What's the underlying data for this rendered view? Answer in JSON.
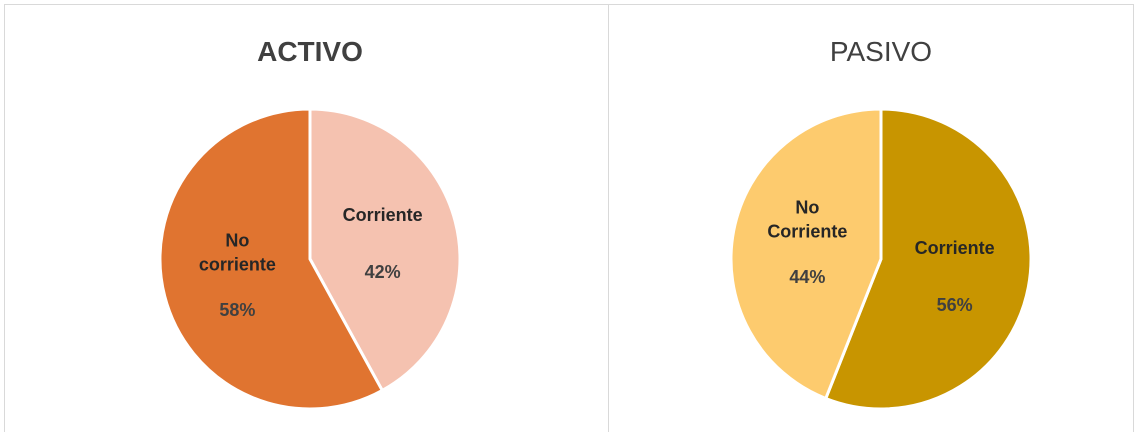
{
  "chart_data": [
    {
      "type": "pie",
      "title": "ACTIVO",
      "title_bold": true,
      "categories": [
        "Corriente",
        "No corriente"
      ],
      "values": [
        42,
        58
      ],
      "value_labels": [
        "42%",
        "58%"
      ],
      "colors": [
        "#F5C2B0",
        "#E07430"
      ]
    },
    {
      "type": "pie",
      "title": "PASIVO",
      "title_bold": false,
      "categories": [
        "Corriente",
        "No Corriente"
      ],
      "values": [
        56,
        44
      ],
      "value_labels": [
        "56%",
        "44%"
      ],
      "colors": [
        "#C89500",
        "#FDCB6E"
      ]
    }
  ]
}
